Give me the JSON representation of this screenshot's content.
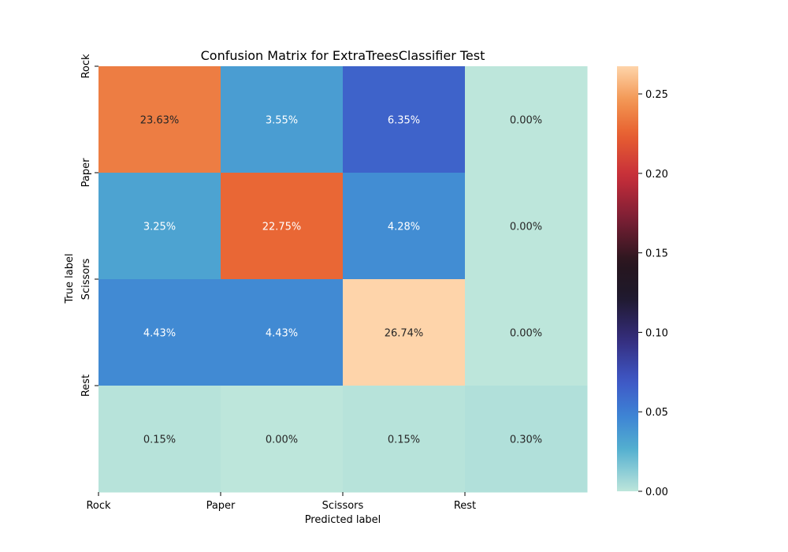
{
  "chart_data": {
    "type": "heatmap",
    "title": "Confusion Matrix for ExtraTreesClassifier Test",
    "xlabel": "Predicted label",
    "ylabel": "True label",
    "x_categories": [
      "Rock",
      "Paper",
      "Scissors",
      "Rest"
    ],
    "y_categories": [
      "Rock",
      "Paper",
      "Scissors",
      "Rest"
    ],
    "values": [
      [
        0.2363,
        0.0355,
        0.0635,
        0.0
      ],
      [
        0.0325,
        0.2275,
        0.0428,
        0.0
      ],
      [
        0.0443,
        0.0443,
        0.2674,
        0.0
      ],
      [
        0.0015,
        0.0,
        0.0015,
        0.003
      ]
    ],
    "cell_labels": [
      [
        "23.63%",
        "3.55%",
        "6.35%",
        "0.00%"
      ],
      [
        "3.25%",
        "22.75%",
        "4.28%",
        "0.00%"
      ],
      [
        "4.43%",
        "4.43%",
        "26.74%",
        "0.00%"
      ],
      [
        "0.15%",
        "0.00%",
        "0.15%",
        "0.30%"
      ]
    ],
    "colorbar": {
      "range": [
        0.0,
        0.2674
      ],
      "ticks": [
        0.0,
        0.05,
        0.1,
        0.15,
        0.2,
        0.25
      ],
      "tick_labels": [
        "0.00",
        "0.05",
        "0.10",
        "0.15",
        "0.20",
        "0.25"
      ],
      "colormap": "icefire"
    },
    "grid": false
  }
}
